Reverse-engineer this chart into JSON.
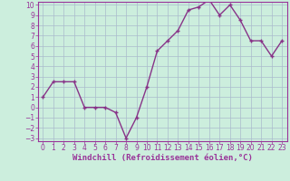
{
  "x": [
    0,
    1,
    2,
    3,
    4,
    5,
    6,
    7,
    8,
    9,
    10,
    11,
    12,
    13,
    14,
    15,
    16,
    17,
    18,
    19,
    20,
    21,
    22,
    23
  ],
  "y": [
    1,
    2.5,
    2.5,
    2.5,
    0,
    0,
    0,
    -0.5,
    -3,
    -1,
    2,
    5.5,
    6.5,
    7.5,
    9.5,
    9.8,
    10.5,
    9,
    10,
    8.5,
    6.5,
    6.5,
    5,
    6.5
  ],
  "line_color": "#883388",
  "marker_color": "#883388",
  "bg_color": "#cceedd",
  "grid_color": "#aabbcc",
  "xlabel": "Windchill (Refroidissement éolien,°C)",
  "ylabel": "",
  "ylim_min": -3,
  "ylim_max": 10,
  "xlim_min": 0,
  "xlim_max": 23,
  "yticks": [
    -3,
    -2,
    -1,
    0,
    1,
    2,
    3,
    4,
    5,
    6,
    7,
    8,
    9,
    10
  ],
  "xticks": [
    0,
    1,
    2,
    3,
    4,
    5,
    6,
    7,
    8,
    9,
    10,
    11,
    12,
    13,
    14,
    15,
    16,
    17,
    18,
    19,
    20,
    21,
    22,
    23
  ],
  "tick_color": "#993399",
  "tick_fontsize": 5.5,
  "xlabel_fontsize": 6.5,
  "linewidth": 1.0,
  "markersize": 2.5,
  "marker": "+"
}
